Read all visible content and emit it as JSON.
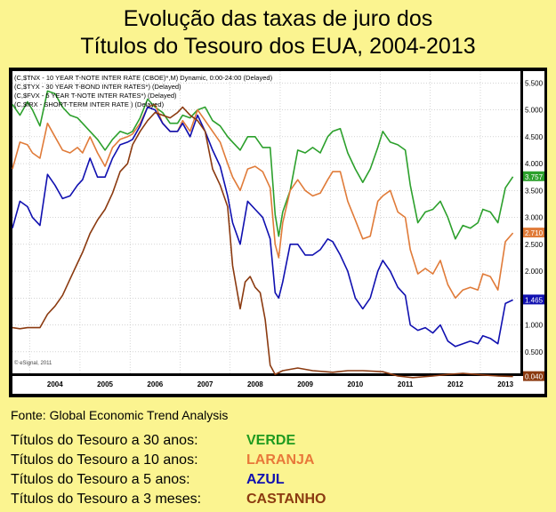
{
  "title_line1": "Evolução das taxas de juro dos",
  "title_line2": "Títulos do Tesouro dos EUA, 2004-2013",
  "source": "Fonte: Global Economic Trend Analysis",
  "legend": [
    {
      "label": "Títulos do Tesouro a 30 anos:",
      "color_name": "VERDE",
      "color": "#1f9a1f"
    },
    {
      "label": "Títulos do Tesouro a 10 anos:",
      "color_name": "LARANJA",
      "color": "#e8783a"
    },
    {
      "label": "Títulos do Tesouro a 5 anos:",
      "color_name": "AZUL",
      "color": "#1010b0"
    },
    {
      "label": "Títulos do Tesouro a 3 meses:",
      "color_name": "CASTANHO",
      "color": "#8b3a10"
    }
  ],
  "chart_data": {
    "type": "line",
    "header_lines": [
      "(C,$TNX - 10 YEAR T-NOTE INTER RATE (CBOE)*,M) Dynamic, 0:00-24:00 (Delayed)",
      "(C,$TYX - 30 YEAR T-BOND INTER RATES*) (Delayed)",
      "(C,$FVX - 5 YEAR T-NOTE INTER RATES*) (Delayed)",
      "(C,$IRX - SHORT-TERM INTER RATE ) (Delayed)"
    ],
    "watermark": "© eSignal, 2011",
    "x_ticks": [
      "2004",
      "2005",
      "2006",
      "2007",
      "2008",
      "2009",
      "2010",
      "2011",
      "2012",
      "2013"
    ],
    "y_ticks": [
      "0.500",
      "1.000",
      "1.500",
      "2.000",
      "2.500",
      "3.000",
      "3.500",
      "4.000",
      "4.500",
      "5.000",
      "5.500"
    ],
    "xlim": [
      2003.6,
      2013.75
    ],
    "ylim": [
      0.1,
      5.72
    ],
    "grid": true,
    "series": [
      {
        "key": "tyx",
        "color": "#2ca02c",
        "end_label": "3.757",
        "points": [
          [
            2003.6,
            5.1
          ],
          [
            2003.75,
            4.9
          ],
          [
            2003.9,
            5.15
          ],
          [
            2004.0,
            5.0
          ],
          [
            2004.15,
            4.7
          ],
          [
            2004.3,
            5.35
          ],
          [
            2004.45,
            5.3
          ],
          [
            2004.6,
            5.05
          ],
          [
            2004.75,
            4.9
          ],
          [
            2004.9,
            4.85
          ],
          [
            2005.0,
            4.75
          ],
          [
            2005.15,
            4.6
          ],
          [
            2005.3,
            4.45
          ],
          [
            2005.45,
            4.25
          ],
          [
            2005.6,
            4.45
          ],
          [
            2005.75,
            4.6
          ],
          [
            2005.9,
            4.55
          ],
          [
            2006.0,
            4.6
          ],
          [
            2006.15,
            4.85
          ],
          [
            2006.3,
            5.2
          ],
          [
            2006.45,
            5.05
          ],
          [
            2006.6,
            4.95
          ],
          [
            2006.75,
            4.75
          ],
          [
            2006.9,
            4.75
          ],
          [
            2007.0,
            4.9
          ],
          [
            2007.15,
            4.85
          ],
          [
            2007.3,
            5.0
          ],
          [
            2007.45,
            5.05
          ],
          [
            2007.6,
            4.8
          ],
          [
            2007.75,
            4.7
          ],
          [
            2007.9,
            4.5
          ],
          [
            2008.0,
            4.4
          ],
          [
            2008.15,
            4.25
          ],
          [
            2008.3,
            4.5
          ],
          [
            2008.45,
            4.5
          ],
          [
            2008.6,
            4.3
          ],
          [
            2008.75,
            4.3
          ],
          [
            2008.85,
            3.05
          ],
          [
            2008.92,
            2.65
          ],
          [
            2009.0,
            3.1
          ],
          [
            2009.15,
            3.5
          ],
          [
            2009.3,
            4.25
          ],
          [
            2009.45,
            4.2
          ],
          [
            2009.6,
            4.3
          ],
          [
            2009.75,
            4.2
          ],
          [
            2009.9,
            4.5
          ],
          [
            2010.0,
            4.6
          ],
          [
            2010.15,
            4.65
          ],
          [
            2010.3,
            4.2
          ],
          [
            2010.45,
            3.9
          ],
          [
            2010.6,
            3.65
          ],
          [
            2010.75,
            3.9
          ],
          [
            2010.9,
            4.3
          ],
          [
            2011.0,
            4.6
          ],
          [
            2011.15,
            4.4
          ],
          [
            2011.3,
            4.35
          ],
          [
            2011.45,
            4.25
          ],
          [
            2011.55,
            3.6
          ],
          [
            2011.7,
            2.9
          ],
          [
            2011.85,
            3.1
          ],
          [
            2012.0,
            3.15
          ],
          [
            2012.15,
            3.3
          ],
          [
            2012.3,
            3.0
          ],
          [
            2012.45,
            2.6
          ],
          [
            2012.6,
            2.85
          ],
          [
            2012.75,
            2.8
          ],
          [
            2012.9,
            2.9
          ],
          [
            2013.0,
            3.15
          ],
          [
            2013.15,
            3.1
          ],
          [
            2013.3,
            2.9
          ],
          [
            2013.45,
            3.55
          ],
          [
            2013.6,
            3.757
          ]
        ]
      },
      {
        "key": "tnx",
        "color": "#e07b39",
        "end_label": "2.710",
        "points": [
          [
            2003.6,
            3.9
          ],
          [
            2003.75,
            4.4
          ],
          [
            2003.9,
            4.35
          ],
          [
            2004.0,
            4.2
          ],
          [
            2004.15,
            4.1
          ],
          [
            2004.3,
            4.75
          ],
          [
            2004.45,
            4.5
          ],
          [
            2004.6,
            4.25
          ],
          [
            2004.75,
            4.2
          ],
          [
            2004.9,
            4.3
          ],
          [
            2005.0,
            4.2
          ],
          [
            2005.15,
            4.5
          ],
          [
            2005.3,
            4.2
          ],
          [
            2005.45,
            3.95
          ],
          [
            2005.6,
            4.3
          ],
          [
            2005.75,
            4.45
          ],
          [
            2005.9,
            4.5
          ],
          [
            2006.0,
            4.55
          ],
          [
            2006.15,
            4.75
          ],
          [
            2006.3,
            5.05
          ],
          [
            2006.45,
            5.1
          ],
          [
            2006.6,
            4.75
          ],
          [
            2006.75,
            4.6
          ],
          [
            2006.9,
            4.6
          ],
          [
            2007.0,
            4.8
          ],
          [
            2007.15,
            4.6
          ],
          [
            2007.3,
            5.0
          ],
          [
            2007.45,
            4.8
          ],
          [
            2007.6,
            4.6
          ],
          [
            2007.75,
            4.4
          ],
          [
            2007.9,
            4.0
          ],
          [
            2008.0,
            3.75
          ],
          [
            2008.15,
            3.5
          ],
          [
            2008.3,
            3.9
          ],
          [
            2008.45,
            3.95
          ],
          [
            2008.6,
            3.85
          ],
          [
            2008.75,
            3.55
          ],
          [
            2008.85,
            2.5
          ],
          [
            2008.92,
            2.25
          ],
          [
            2009.0,
            2.9
          ],
          [
            2009.15,
            3.5
          ],
          [
            2009.3,
            3.7
          ],
          [
            2009.45,
            3.5
          ],
          [
            2009.6,
            3.4
          ],
          [
            2009.75,
            3.45
          ],
          [
            2009.9,
            3.7
          ],
          [
            2010.0,
            3.85
          ],
          [
            2010.15,
            3.85
          ],
          [
            2010.3,
            3.3
          ],
          [
            2010.45,
            2.95
          ],
          [
            2010.6,
            2.6
          ],
          [
            2010.75,
            2.65
          ],
          [
            2010.9,
            3.3
          ],
          [
            2011.0,
            3.4
          ],
          [
            2011.15,
            3.5
          ],
          [
            2011.3,
            3.1
          ],
          [
            2011.45,
            3.0
          ],
          [
            2011.55,
            2.4
          ],
          [
            2011.7,
            1.95
          ],
          [
            2011.85,
            2.05
          ],
          [
            2012.0,
            1.95
          ],
          [
            2012.15,
            2.2
          ],
          [
            2012.3,
            1.75
          ],
          [
            2012.45,
            1.5
          ],
          [
            2012.6,
            1.65
          ],
          [
            2012.75,
            1.7
          ],
          [
            2012.9,
            1.65
          ],
          [
            2013.0,
            1.95
          ],
          [
            2013.15,
            1.9
          ],
          [
            2013.3,
            1.65
          ],
          [
            2013.45,
            2.55
          ],
          [
            2013.6,
            2.71
          ]
        ]
      },
      {
        "key": "fvx",
        "color": "#1010b0",
        "end_label": "1.465",
        "points": [
          [
            2003.6,
            2.8
          ],
          [
            2003.75,
            3.3
          ],
          [
            2003.9,
            3.2
          ],
          [
            2004.0,
            3.0
          ],
          [
            2004.15,
            2.85
          ],
          [
            2004.3,
            3.8
          ],
          [
            2004.45,
            3.6
          ],
          [
            2004.6,
            3.35
          ],
          [
            2004.75,
            3.4
          ],
          [
            2004.9,
            3.6
          ],
          [
            2005.0,
            3.7
          ],
          [
            2005.15,
            4.1
          ],
          [
            2005.3,
            3.75
          ],
          [
            2005.45,
            3.75
          ],
          [
            2005.6,
            4.1
          ],
          [
            2005.75,
            4.35
          ],
          [
            2005.9,
            4.4
          ],
          [
            2006.0,
            4.45
          ],
          [
            2006.15,
            4.7
          ],
          [
            2006.3,
            5.05
          ],
          [
            2006.45,
            5.0
          ],
          [
            2006.6,
            4.75
          ],
          [
            2006.75,
            4.6
          ],
          [
            2006.9,
            4.6
          ],
          [
            2007.0,
            4.75
          ],
          [
            2007.15,
            4.5
          ],
          [
            2007.3,
            4.9
          ],
          [
            2007.45,
            4.6
          ],
          [
            2007.6,
            4.25
          ],
          [
            2007.75,
            3.95
          ],
          [
            2007.9,
            3.4
          ],
          [
            2008.0,
            2.9
          ],
          [
            2008.15,
            2.5
          ],
          [
            2008.3,
            3.3
          ],
          [
            2008.45,
            3.15
          ],
          [
            2008.6,
            3.0
          ],
          [
            2008.75,
            2.6
          ],
          [
            2008.85,
            1.6
          ],
          [
            2008.92,
            1.5
          ],
          [
            2009.0,
            1.8
          ],
          [
            2009.15,
            2.5
          ],
          [
            2009.3,
            2.5
          ],
          [
            2009.45,
            2.3
          ],
          [
            2009.6,
            2.3
          ],
          [
            2009.75,
            2.4
          ],
          [
            2009.9,
            2.6
          ],
          [
            2010.0,
            2.55
          ],
          [
            2010.15,
            2.3
          ],
          [
            2010.3,
            2.0
          ],
          [
            2010.45,
            1.5
          ],
          [
            2010.6,
            1.3
          ],
          [
            2010.75,
            1.5
          ],
          [
            2010.9,
            2.0
          ],
          [
            2011.0,
            2.2
          ],
          [
            2011.15,
            2.0
          ],
          [
            2011.3,
            1.7
          ],
          [
            2011.45,
            1.55
          ],
          [
            2011.55,
            1.0
          ],
          [
            2011.7,
            0.9
          ],
          [
            2011.85,
            0.95
          ],
          [
            2012.0,
            0.85
          ],
          [
            2012.15,
            1.0
          ],
          [
            2012.3,
            0.7
          ],
          [
            2012.45,
            0.6
          ],
          [
            2012.6,
            0.65
          ],
          [
            2012.75,
            0.7
          ],
          [
            2012.9,
            0.65
          ],
          [
            2013.0,
            0.8
          ],
          [
            2013.15,
            0.75
          ],
          [
            2013.3,
            0.65
          ],
          [
            2013.45,
            1.4
          ],
          [
            2013.6,
            1.465
          ]
        ]
      },
      {
        "key": "irx",
        "color": "#8b3a10",
        "end_label": "0.040",
        "points": [
          [
            2003.6,
            0.95
          ],
          [
            2003.75,
            0.93
          ],
          [
            2003.9,
            0.95
          ],
          [
            2004.0,
            0.95
          ],
          [
            2004.15,
            0.95
          ],
          [
            2004.3,
            1.2
          ],
          [
            2004.45,
            1.35
          ],
          [
            2004.6,
            1.55
          ],
          [
            2004.75,
            1.85
          ],
          [
            2004.9,
            2.15
          ],
          [
            2005.0,
            2.35
          ],
          [
            2005.15,
            2.7
          ],
          [
            2005.3,
            2.95
          ],
          [
            2005.45,
            3.15
          ],
          [
            2005.6,
            3.45
          ],
          [
            2005.75,
            3.85
          ],
          [
            2005.9,
            4.0
          ],
          [
            2006.0,
            4.35
          ],
          [
            2006.15,
            4.6
          ],
          [
            2006.3,
            4.8
          ],
          [
            2006.45,
            4.95
          ],
          [
            2006.6,
            4.9
          ],
          [
            2006.75,
            4.85
          ],
          [
            2006.9,
            4.95
          ],
          [
            2007.0,
            5.05
          ],
          [
            2007.15,
            4.9
          ],
          [
            2007.3,
            4.8
          ],
          [
            2007.45,
            4.6
          ],
          [
            2007.6,
            3.9
          ],
          [
            2007.75,
            3.6
          ],
          [
            2007.9,
            3.2
          ],
          [
            2008.0,
            2.1
          ],
          [
            2008.15,
            1.3
          ],
          [
            2008.25,
            1.8
          ],
          [
            2008.35,
            1.9
          ],
          [
            2008.45,
            1.7
          ],
          [
            2008.55,
            1.6
          ],
          [
            2008.65,
            1.1
          ],
          [
            2008.75,
            0.25
          ],
          [
            2008.85,
            0.08
          ],
          [
            2009.0,
            0.15
          ],
          [
            2009.3,
            0.2
          ],
          [
            2009.6,
            0.15
          ],
          [
            2010.0,
            0.12
          ],
          [
            2010.3,
            0.15
          ],
          [
            2010.6,
            0.15
          ],
          [
            2011.0,
            0.13
          ],
          [
            2011.3,
            0.05
          ],
          [
            2011.6,
            0.02
          ],
          [
            2012.0,
            0.05
          ],
          [
            2012.3,
            0.08
          ],
          [
            2012.6,
            0.1
          ],
          [
            2013.0,
            0.07
          ],
          [
            2013.3,
            0.05
          ],
          [
            2013.6,
            0.04
          ]
        ]
      }
    ]
  }
}
